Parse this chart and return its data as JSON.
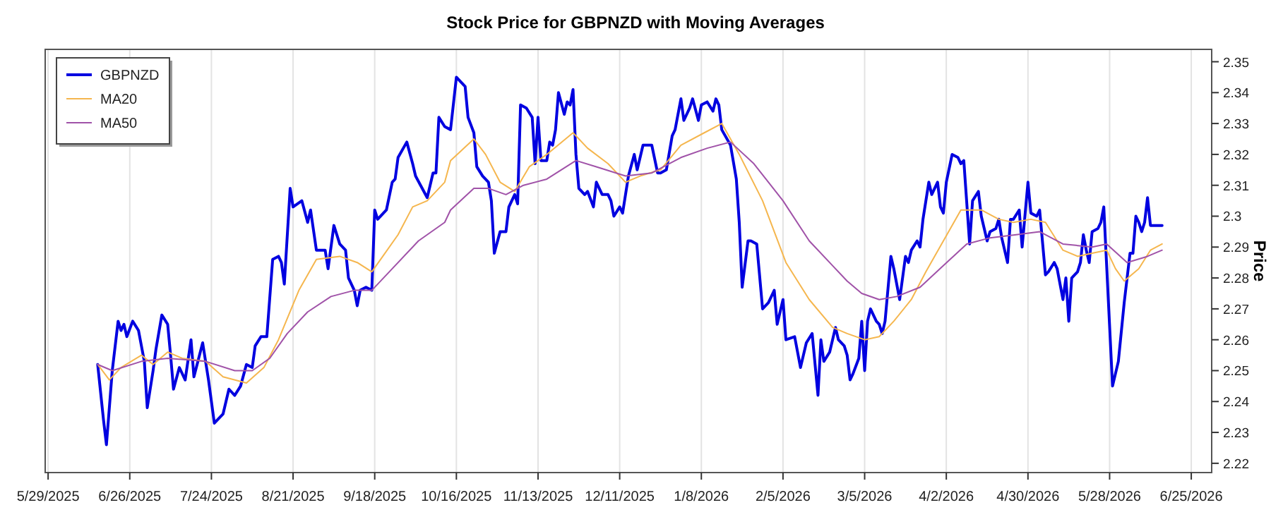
{
  "chart_data": {
    "type": "line",
    "title": "Stock Price for GBPNZD with Moving Averages",
    "ylabel": "Price",
    "xlim": [
      "2025-05-28",
      "2026-07-02"
    ],
    "xticks": [
      {
        "value": "2025-05-29",
        "label": "5/29/2025"
      },
      {
        "value": "2025-06-26",
        "label": "6/26/2025"
      },
      {
        "value": "2025-07-24",
        "label": "7/24/2025"
      },
      {
        "value": "2025-08-21",
        "label": "8/21/2025"
      },
      {
        "value": "2025-09-18",
        "label": "9/18/2025"
      },
      {
        "value": "2025-10-16",
        "label": "10/16/2025"
      },
      {
        "value": "2025-11-13",
        "label": "11/13/2025"
      },
      {
        "value": "2025-12-11",
        "label": "12/11/2025"
      },
      {
        "value": "2026-01-08",
        "label": "1/8/2026"
      },
      {
        "value": "2026-02-05",
        "label": "2/5/2026"
      },
      {
        "value": "2026-03-05",
        "label": "3/5/2026"
      },
      {
        "value": "2026-04-02",
        "label": "4/2/2026"
      },
      {
        "value": "2026-04-30",
        "label": "4/30/2026"
      },
      {
        "value": "2026-05-28",
        "label": "5/28/2026"
      },
      {
        "value": "2026-06-25",
        "label": "6/25/2026"
      }
    ],
    "ylim": [
      2.217,
      2.354
    ],
    "yticks": [
      2.22,
      2.23,
      2.24,
      2.25,
      2.26,
      2.27,
      2.28,
      2.29,
      2.3,
      2.31,
      2.32,
      2.33,
      2.34,
      2.35
    ],
    "grid": "x",
    "legend": "top left",
    "marker": "none",
    "line_style": "solid",
    "series": [
      {
        "name": "GBPNZD",
        "color": "#0000e0",
        "x": [
          "2025-06-15",
          "2025-06-17",
          "2025-06-18",
          "2025-06-20",
          "2025-06-22",
          "2025-06-23",
          "2025-06-24",
          "2025-06-25",
          "2025-06-27",
          "2025-06-29",
          "2025-07-01",
          "2025-07-02",
          "2025-07-04",
          "2025-07-05",
          "2025-07-07",
          "2025-07-09",
          "2025-07-10",
          "2025-07-11",
          "2025-07-13",
          "2025-07-15",
          "2025-07-17",
          "2025-07-18",
          "2025-07-21",
          "2025-07-23",
          "2025-07-25",
          "2025-07-28",
          "2025-07-30",
          "2025-08-01",
          "2025-08-03",
          "2025-08-05",
          "2025-08-07",
          "2025-08-08",
          "2025-08-10",
          "2025-08-12",
          "2025-08-14",
          "2025-08-16",
          "2025-08-17",
          "2025-08-18",
          "2025-08-20",
          "2025-08-21",
          "2025-08-24",
          "2025-08-26",
          "2025-08-27",
          "2025-08-29",
          "2025-09-01",
          "2025-09-02",
          "2025-09-04",
          "2025-09-06",
          "2025-09-08",
          "2025-09-09",
          "2025-09-11",
          "2025-09-12",
          "2025-09-13",
          "2025-09-15",
          "2025-09-17",
          "2025-09-18",
          "2025-09-19",
          "2025-09-22",
          "2025-09-24",
          "2025-09-25",
          "2025-09-26",
          "2025-09-29",
          "2025-10-01",
          "2025-10-02",
          "2025-10-06",
          "2025-10-08",
          "2025-10-09",
          "2025-10-10",
          "2025-10-12",
          "2025-10-14",
          "2025-10-16",
          "2025-10-17",
          "2025-10-19",
          "2025-10-20",
          "2025-10-22",
          "2025-10-23",
          "2025-10-25",
          "2025-10-27",
          "2025-10-28",
          "2025-10-29",
          "2025-10-31",
          "2025-11-02",
          "2025-11-03",
          "2025-11-05",
          "2025-11-06",
          "2025-11-07",
          "2025-11-09",
          "2025-11-11",
          "2025-11-12",
          "2025-11-13",
          "2025-11-14",
          "2025-11-16",
          "2025-11-17",
          "2025-11-18",
          "2025-11-19",
          "2025-11-20",
          "2025-11-22",
          "2025-11-23",
          "2025-11-24",
          "2025-11-25",
          "2025-11-26",
          "2025-11-27",
          "2025-11-29",
          "2025-11-30",
          "2025-12-02",
          "2025-12-03",
          "2025-12-05",
          "2025-12-07",
          "2025-12-08",
          "2025-12-09",
          "2025-12-11",
          "2025-12-12",
          "2025-12-14",
          "2025-12-16",
          "2025-12-17",
          "2025-12-19",
          "2025-12-22",
          "2025-12-24",
          "2025-12-25",
          "2025-12-27",
          "2025-12-29",
          "2025-12-30",
          "2026-01-01",
          "2026-01-02",
          "2026-01-04",
          "2026-01-05",
          "2026-01-07",
          "2026-01-08",
          "2026-01-10",
          "2026-01-12",
          "2026-01-13",
          "2026-01-14",
          "2026-01-15",
          "2026-01-18",
          "2026-01-20",
          "2026-01-21",
          "2026-01-22",
          "2026-01-24",
          "2026-01-25",
          "2026-01-27",
          "2026-01-29",
          "2026-01-31",
          "2026-02-02",
          "2026-02-03",
          "2026-02-05",
          "2026-02-06",
          "2026-02-09",
          "2026-02-11",
          "2026-02-13",
          "2026-02-15",
          "2026-02-17",
          "2026-02-18",
          "2026-02-19",
          "2026-02-21",
          "2026-02-23",
          "2026-02-24",
          "2026-02-26",
          "2026-02-27",
          "2026-02-28",
          "2026-03-01",
          "2026-03-03",
          "2026-03-04",
          "2026-03-05",
          "2026-03-06",
          "2026-03-07",
          "2026-03-09",
          "2026-03-10",
          "2026-03-11",
          "2026-03-12",
          "2026-03-14",
          "2026-03-15",
          "2026-03-17",
          "2026-03-19",
          "2026-03-20",
          "2026-03-21",
          "2026-03-23",
          "2026-03-24",
          "2026-03-25",
          "2026-03-27",
          "2026-03-28",
          "2026-03-30",
          "2026-03-31",
          "2026-04-01",
          "2026-04-02",
          "2026-04-04",
          "2026-04-06",
          "2026-04-07",
          "2026-04-08",
          "2026-04-10",
          "2026-04-11",
          "2026-04-13",
          "2026-04-14",
          "2026-04-16",
          "2026-04-17",
          "2026-04-19",
          "2026-04-20",
          "2026-04-21",
          "2026-04-23",
          "2026-04-24",
          "2026-04-25",
          "2026-04-27",
          "2026-04-28",
          "2026-04-30",
          "2026-05-01",
          "2026-05-03",
          "2026-05-04",
          "2026-05-06",
          "2026-05-07",
          "2026-05-09",
          "2026-05-10",
          "2026-05-12",
          "2026-05-13",
          "2026-05-14",
          "2026-05-15",
          "2026-05-17",
          "2026-05-18",
          "2026-05-19",
          "2026-05-20",
          "2026-05-21",
          "2026-05-22",
          "2026-05-24",
          "2026-05-25",
          "2026-05-26",
          "2026-05-29",
          "2026-05-31",
          "2026-06-02",
          "2026-06-04",
          "2026-06-05",
          "2026-06-06",
          "2026-06-07",
          "2026-06-08",
          "2026-06-09",
          "2026-06-10",
          "2026-06-11",
          "2026-06-13",
          "2026-06-15"
        ],
        "values": [
          2.252,
          2.234,
          2.226,
          2.25,
          2.266,
          2.263,
          2.265,
          2.261,
          2.266,
          2.263,
          2.253,
          2.238,
          2.25,
          2.257,
          2.268,
          2.265,
          2.255,
          2.244,
          2.251,
          2.247,
          2.26,
          2.248,
          2.259,
          2.247,
          2.233,
          2.236,
          2.244,
          2.242,
          2.245,
          2.252,
          2.251,
          2.258,
          2.261,
          2.261,
          2.286,
          2.287,
          2.285,
          2.278,
          2.309,
          2.303,
          2.305,
          2.298,
          2.302,
          2.289,
          2.289,
          2.283,
          2.297,
          2.291,
          2.289,
          2.28,
          2.276,
          2.271,
          2.276,
          2.277,
          2.276,
          2.302,
          2.299,
          2.302,
          2.311,
          2.312,
          2.319,
          2.324,
          2.317,
          2.313,
          2.306,
          2.314,
          2.314,
          2.332,
          2.329,
          2.328,
          2.345,
          2.344,
          2.342,
          2.332,
          2.327,
          2.316,
          2.313,
          2.311,
          2.305,
          2.288,
          2.295,
          2.295,
          2.303,
          2.307,
          2.304,
          2.336,
          2.335,
          2.332,
          2.317,
          2.332,
          2.318,
          2.318,
          2.324,
          2.323,
          2.328,
          2.34,
          2.333,
          2.337,
          2.336,
          2.341,
          2.32,
          2.309,
          2.307,
          2.308,
          2.303,
          2.311,
          2.307,
          2.307,
          2.305,
          2.3,
          2.303,
          2.301,
          2.313,
          2.32,
          2.315,
          2.323,
          2.323,
          2.314,
          2.314,
          2.315,
          2.326,
          2.328,
          2.338,
          2.331,
          2.335,
          2.338,
          2.331,
          2.336,
          2.337,
          2.334,
          2.338,
          2.336,
          2.328,
          2.323,
          2.312,
          2.298,
          2.277,
          2.292,
          2.292,
          2.291,
          2.27,
          2.272,
          2.276,
          2.265,
          2.273,
          2.26,
          2.261,
          2.251,
          2.259,
          2.262,
          2.242,
          2.26,
          2.253,
          2.256,
          2.264,
          2.26,
          2.258,
          2.255,
          2.247,
          2.249,
          2.254,
          2.266,
          2.25,
          2.266,
          2.27,
          2.266,
          2.265,
          2.262,
          2.266,
          2.287,
          2.283,
          2.273,
          2.287,
          2.285,
          2.289,
          2.292,
          2.29,
          2.299,
          2.311,
          2.307,
          2.311,
          2.303,
          2.301,
          2.311,
          2.32,
          2.319,
          2.317,
          2.318,
          2.291,
          2.305,
          2.308,
          2.3,
          2.292,
          2.295,
          2.296,
          2.299,
          2.293,
          2.285,
          2.299,
          2.299,
          2.302,
          2.29,
          2.311,
          2.301,
          2.3,
          2.302,
          2.281,
          2.282,
          2.285,
          2.283,
          2.273,
          2.28,
          2.266,
          2.28,
          2.282,
          2.285,
          2.294,
          2.289,
          2.285,
          2.295,
          2.296,
          2.298,
          2.303,
          2.245,
          2.253,
          2.272,
          2.288,
          2.288,
          2.3,
          2.298,
          2.295,
          2.298,
          2.306,
          2.297,
          2.297,
          2.297
        ]
      },
      {
        "name": "MA20",
        "color": "#f5b64e",
        "x": [
          "2025-06-15",
          "2025-06-19",
          "2025-06-23",
          "2025-06-30",
          "2025-07-04",
          "2025-07-09",
          "2025-07-14",
          "2025-07-22",
          "2025-07-28",
          "2025-08-05",
          "2025-08-11",
          "2025-08-16",
          "2025-08-23",
          "2025-08-29",
          "2025-09-06",
          "2025-09-12",
          "2025-09-17",
          "2025-09-20",
          "2025-09-26",
          "2025-10-01",
          "2025-10-06",
          "2025-10-12",
          "2025-10-14",
          "2025-10-22",
          "2025-10-26",
          "2025-10-31",
          "2025-11-05",
          "2025-11-10",
          "2025-11-16",
          "2025-11-25",
          "2025-11-30",
          "2025-12-07",
          "2025-12-13",
          "2025-12-18",
          "2025-12-25",
          "2026-01-01",
          "2026-01-09",
          "2026-01-15",
          "2026-01-21",
          "2026-01-29",
          "2026-02-06",
          "2026-02-14",
          "2026-02-22",
          "2026-02-27",
          "2026-03-05",
          "2026-03-10",
          "2026-03-15",
          "2026-03-21",
          "2026-03-26",
          "2026-04-01",
          "2026-04-07",
          "2026-04-14",
          "2026-04-20",
          "2026-04-25",
          "2026-05-01",
          "2026-05-06",
          "2026-05-12",
          "2026-05-17",
          "2026-05-22",
          "2026-05-27",
          "2026-05-30",
          "2026-06-02",
          "2026-06-07",
          "2026-06-11",
          "2026-06-15"
        ],
        "values": [
          2.252,
          2.247,
          2.251,
          2.255,
          2.252,
          2.256,
          2.254,
          2.253,
          2.248,
          2.246,
          2.251,
          2.26,
          2.276,
          2.286,
          2.287,
          2.285,
          2.282,
          2.286,
          2.294,
          2.303,
          2.305,
          2.311,
          2.318,
          2.325,
          2.32,
          2.311,
          2.308,
          2.316,
          2.32,
          2.327,
          2.322,
          2.317,
          2.311,
          2.313,
          2.315,
          2.323,
          2.327,
          2.33,
          2.32,
          2.305,
          2.285,
          2.273,
          2.264,
          2.262,
          2.26,
          2.261,
          2.266,
          2.273,
          2.282,
          2.292,
          2.302,
          2.302,
          2.299,
          2.298,
          2.299,
          2.298,
          2.289,
          2.287,
          2.288,
          2.289,
          2.283,
          2.279,
          2.283,
          2.289,
          2.291
        ]
      },
      {
        "name": "MA50",
        "color": "#a052a8",
        "x": [
          "2025-06-15",
          "2025-06-20",
          "2025-06-30",
          "2025-07-09",
          "2025-07-22",
          "2025-08-01",
          "2025-08-07",
          "2025-08-13",
          "2025-08-19",
          "2025-08-26",
          "2025-09-03",
          "2025-09-11",
          "2025-09-17",
          "2025-09-23",
          "2025-10-03",
          "2025-10-12",
          "2025-10-14",
          "2025-10-22",
          "2025-10-27",
          "2025-11-02",
          "2025-11-08",
          "2025-11-16",
          "2025-11-26",
          "2025-12-03",
          "2025-12-13",
          "2025-12-22",
          "2026-01-01",
          "2026-01-10",
          "2026-01-18",
          "2026-01-26",
          "2026-02-05",
          "2026-02-14",
          "2026-02-22",
          "2026-02-27",
          "2026-03-04",
          "2026-03-10",
          "2026-03-16",
          "2026-03-24",
          "2026-04-01",
          "2026-04-09",
          "2026-04-17",
          "2026-04-26",
          "2026-05-04",
          "2026-05-12",
          "2026-05-22",
          "2026-05-27",
          "2026-06-03",
          "2026-06-10",
          "2026-06-15"
        ],
        "values": [
          2.252,
          2.25,
          2.253,
          2.254,
          2.253,
          2.25,
          2.25,
          2.254,
          2.262,
          2.269,
          2.274,
          2.276,
          2.276,
          2.282,
          2.292,
          2.298,
          2.302,
          2.309,
          2.309,
          2.307,
          2.31,
          2.312,
          2.318,
          2.316,
          2.313,
          2.314,
          2.319,
          2.322,
          2.324,
          2.317,
          2.305,
          2.292,
          2.284,
          2.279,
          2.275,
          2.273,
          2.274,
          2.277,
          2.284,
          2.291,
          2.293,
          2.294,
          2.295,
          2.291,
          2.29,
          2.291,
          2.285,
          2.287,
          2.289
        ]
      }
    ]
  }
}
